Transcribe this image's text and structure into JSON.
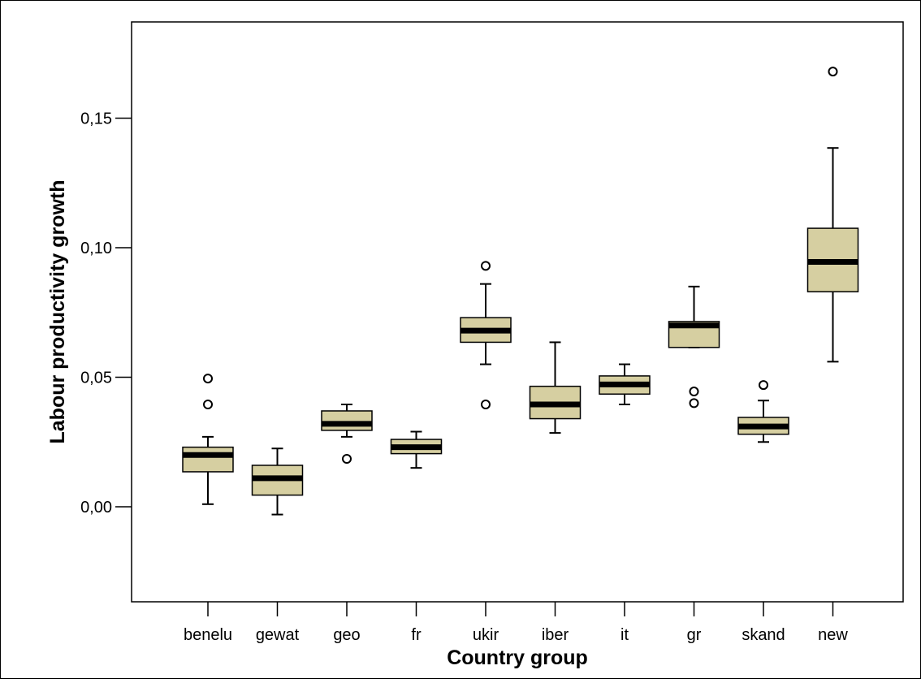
{
  "colors": {
    "box_fill": "#d6cfa1",
    "stroke": "#000000",
    "background": "#ffffff"
  },
  "chart_data": {
    "type": "boxplot",
    "title": "",
    "xlabel": "Country group",
    "ylabel": "Labour productivity growth",
    "ylim": [
      -0.037,
      0.18
    ],
    "yticks": [
      0.0,
      0.05,
      0.1,
      0.15
    ],
    "ytick_labels": [
      "0,00",
      "0,05",
      "0,10",
      "0,15"
    ],
    "grid": false,
    "categories": [
      "benelu",
      "gewat",
      "geo",
      "fr",
      "ukir",
      "iber",
      "it",
      "gr",
      "skand",
      "new"
    ],
    "boxes": [
      {
        "category": "benelu",
        "whisker_low": 0.001,
        "q1": 0.0135,
        "median": 0.02,
        "q3": 0.023,
        "whisker_high": 0.027,
        "outliers": [
          0.0395,
          0.0495
        ]
      },
      {
        "category": "gewat",
        "whisker_low": -0.003,
        "q1": 0.0045,
        "median": 0.011,
        "q3": 0.016,
        "whisker_high": 0.0225,
        "outliers": []
      },
      {
        "category": "geo",
        "whisker_low": 0.027,
        "q1": 0.0295,
        "median": 0.032,
        "q3": 0.037,
        "whisker_high": 0.0395,
        "outliers": [
          0.0185
        ]
      },
      {
        "category": "fr",
        "whisker_low": 0.015,
        "q1": 0.0205,
        "median": 0.023,
        "q3": 0.026,
        "whisker_high": 0.029,
        "outliers": []
      },
      {
        "category": "ukir",
        "whisker_low": 0.055,
        "q1": 0.0635,
        "median": 0.068,
        "q3": 0.073,
        "whisker_high": 0.086,
        "outliers": [
          0.0395,
          0.093
        ]
      },
      {
        "category": "iber",
        "whisker_low": 0.0285,
        "q1": 0.034,
        "median": 0.0395,
        "q3": 0.0465,
        "whisker_high": 0.0635,
        "outliers": []
      },
      {
        "category": "it",
        "whisker_low": 0.0395,
        "q1": 0.0435,
        "median": 0.0472,
        "q3": 0.0505,
        "whisker_high": 0.055,
        "outliers": []
      },
      {
        "category": "gr",
        "whisker_low": 0.0615,
        "q1": 0.0615,
        "median": 0.07,
        "q3": 0.0715,
        "whisker_high": 0.085,
        "outliers": [
          0.04,
          0.0445
        ]
      },
      {
        "category": "skand",
        "whisker_low": 0.025,
        "q1": 0.028,
        "median": 0.031,
        "q3": 0.0345,
        "whisker_high": 0.041,
        "outliers": [
          0.047
        ]
      },
      {
        "category": "new",
        "whisker_low": 0.056,
        "q1": 0.083,
        "median": 0.0945,
        "q3": 0.1075,
        "whisker_high": 0.1385,
        "outliers": [
          0.168
        ]
      }
    ]
  }
}
